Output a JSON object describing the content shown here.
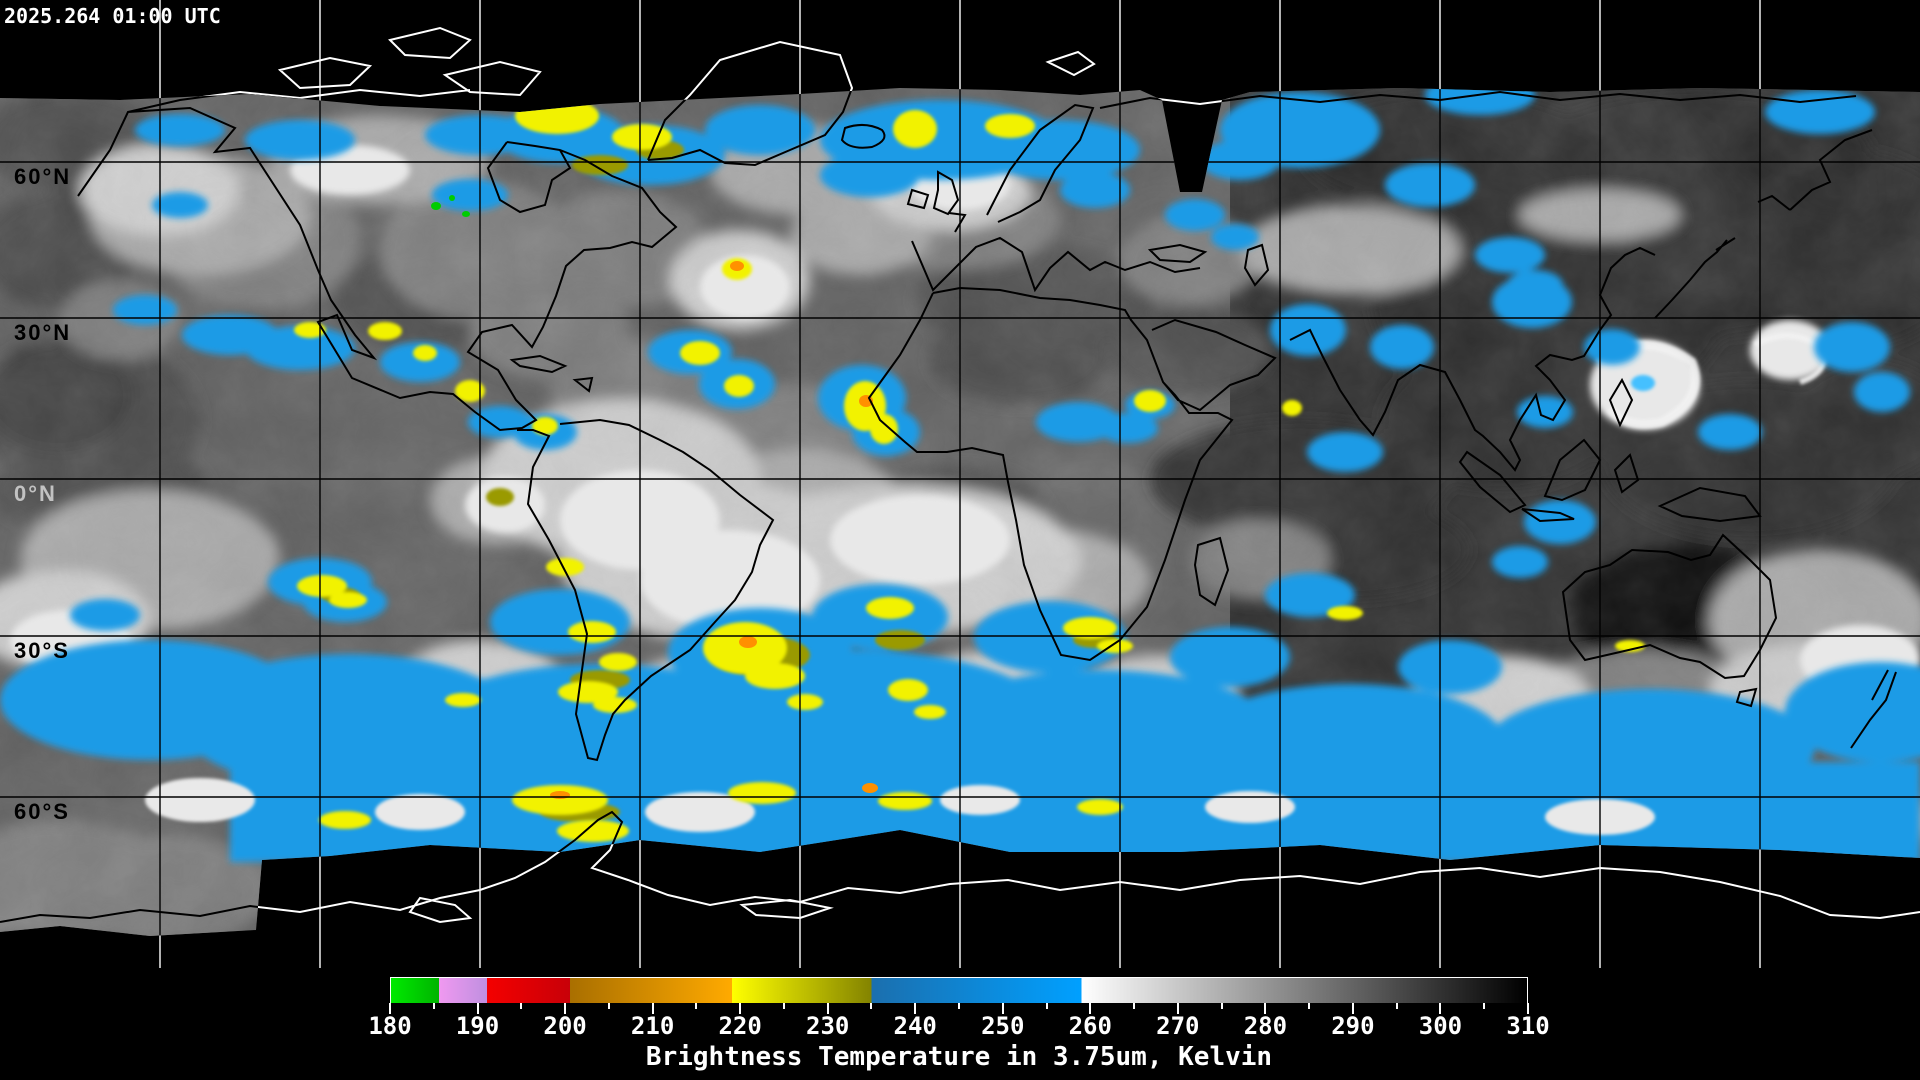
{
  "header": {
    "timestamp": "2025.264 01:00 UTC"
  },
  "map": {
    "latitude_labels": [
      {
        "text": "60°N",
        "color": "#000000"
      },
      {
        "text": "30°N",
        "color": "#000000"
      },
      {
        "text": "0°N",
        "color": "#c2c2c2"
      },
      {
        "text": "30°S",
        "color": "#000000"
      },
      {
        "text": "60°S",
        "color": "#000000"
      }
    ]
  },
  "colorbar": {
    "caption": "Brightness Temperature in 3.75um, Kelvin",
    "min": 180,
    "max": 310,
    "minor_tick_step": 5,
    "tick_labels": [
      "180",
      "190",
      "200",
      "210",
      "220",
      "230",
      "240",
      "250",
      "260",
      "270",
      "280",
      "290",
      "300",
      "310"
    ],
    "segments": [
      {
        "name": "green",
        "from": 180,
        "to": 185.5,
        "from_color": "#00ea00",
        "to_color": "#00b400"
      },
      {
        "name": "violet",
        "from": 185.5,
        "to": 191,
        "from_color": "#f099f0",
        "to_color": "#bf8fe0"
      },
      {
        "name": "red",
        "from": 191,
        "to": 200.5,
        "from_color": "#f40000",
        "to_color": "#c80008"
      },
      {
        "name": "orange",
        "from": 200.5,
        "to": 219,
        "from_color": "#a96f00",
        "to_color": "#ffaa00"
      },
      {
        "name": "yellow-olive",
        "from": 219,
        "to": 235,
        "from_color": "#ffff00",
        "to_color": "#838300"
      },
      {
        "name": "blue",
        "from": 235,
        "to": 259,
        "from_color": "#1b6fae",
        "to_color": "#00a0ff"
      },
      {
        "name": "grayscale",
        "from": 259,
        "to": 310,
        "from_color": "#ffffff",
        "to_color": "#000000"
      }
    ]
  }
}
